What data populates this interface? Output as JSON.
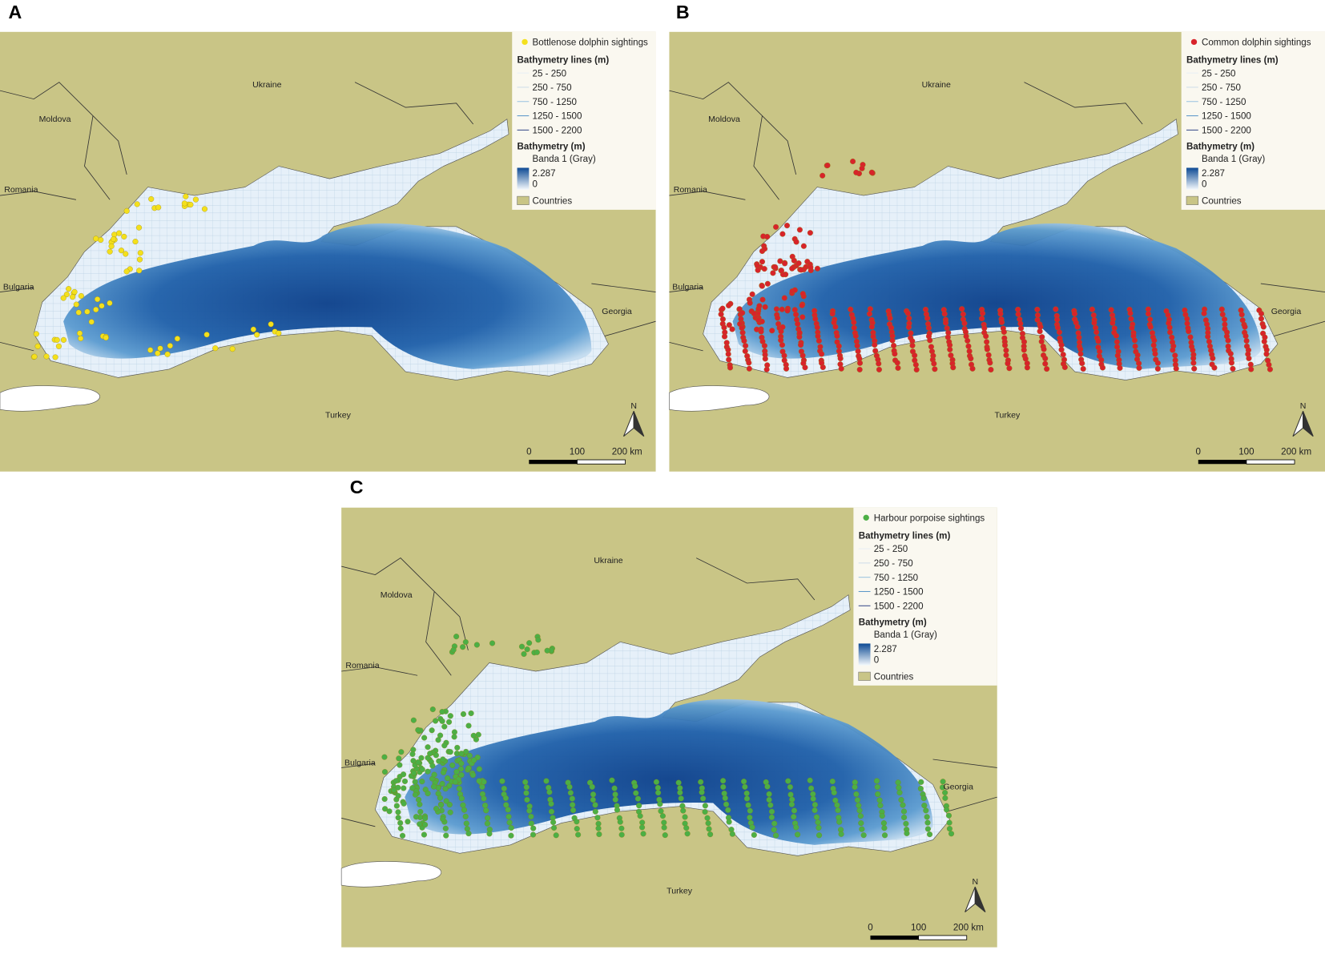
{
  "panels": [
    {
      "letter": "A",
      "color": "#f4e01c",
      "legend": {
        "sightings": "Bottlenose dolphin sightings",
        "lines_title": "Bathymetry lines (m)",
        "lines": [
          "25 - 250",
          "250 - 750",
          "750 - 1250",
          "1250 - 1500",
          "1500 - 2200"
        ],
        "bathy_title": "Bathymetry (m)",
        "band": "Banda 1 (Gray)",
        "max": "2.287",
        "min": "0",
        "countries": "Countries"
      },
      "labels": {
        "ukraine": "Ukraine",
        "moldova": "Moldova",
        "romania": "Romania",
        "bulgaria": "Bulgaria",
        "georgia": "Georgia",
        "turkey": "Turkey"
      },
      "north": "N",
      "scale": [
        "0",
        "100",
        "200 km"
      ]
    },
    {
      "letter": "B",
      "color": "#d8232a",
      "legend": {
        "sightings": "Common dolphin sightings",
        "lines_title": "Bathymetry lines (m)",
        "lines": [
          "25 - 250",
          "250 - 750",
          "750 - 1250",
          "1250 - 1500",
          "1500 - 2200"
        ],
        "bathy_title": "Bathymetry (m)",
        "band": "Banda 1 (Gray)",
        "max": "2.287",
        "min": "0",
        "countries": "Countries"
      },
      "labels": {
        "ukraine": "Ukraine",
        "moldova": "Moldova",
        "romania": "Romania",
        "bulgaria": "Bulgaria",
        "georgia": "Georgia",
        "turkey": "Turkey"
      },
      "north": "N",
      "scale": [
        "0",
        "100",
        "200 km"
      ]
    },
    {
      "letter": "C",
      "color": "#4caf45",
      "legend": {
        "sightings": "Harbour porpoise sightings",
        "lines_title": "Bathymetry lines (m)",
        "lines": [
          "25 - 250",
          "250 - 750",
          "750 - 1250",
          "1250 - 1500",
          "1500 - 2200"
        ],
        "bathy_title": "Bathymetry (m)",
        "band": "Banda 1 (Gray)",
        "max": "2.287",
        "min": "0",
        "countries": "Countries"
      },
      "labels": {
        "ukraine": "Ukraine",
        "moldova": "Moldova",
        "romania": "Romania",
        "bulgaria": "Bulgaria",
        "georgia": "Georgia",
        "turkey": "Turkey"
      },
      "north": "N",
      "scale": [
        "0",
        "100",
        "200 km"
      ]
    }
  ]
}
